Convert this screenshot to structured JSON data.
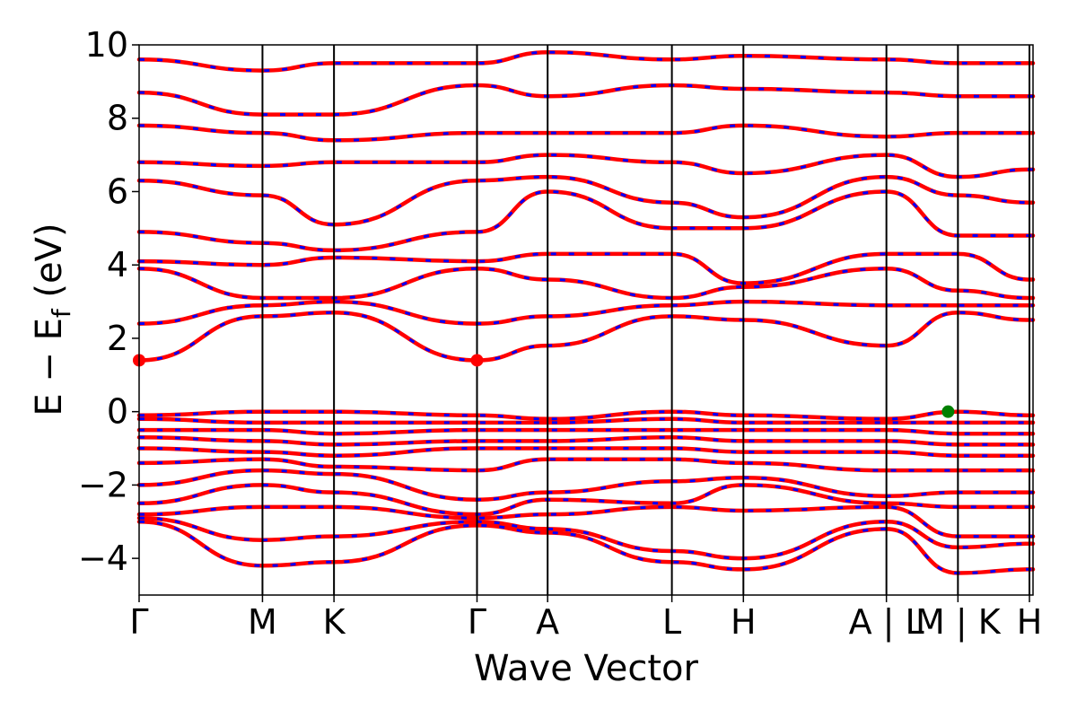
{
  "chart_data": {
    "type": "line",
    "title": "",
    "xlabel": "Wave Vector",
    "ylabel": "E − E_f (eV)",
    "ylabel_parts": {
      "main": "E − E",
      "sub": "f",
      "unit": " (eV)"
    },
    "ylim": [
      -5,
      10
    ],
    "yticks": [
      -4,
      -2,
      0,
      2,
      4,
      6,
      8,
      10
    ],
    "ytick_labels": [
      "−4",
      "−2",
      "0",
      "2",
      "4",
      "6",
      "8",
      "10"
    ],
    "xlim": [
      0,
      1
    ],
    "kpoints": [
      {
        "x": 0.0,
        "label": "Γ"
      },
      {
        "x": 0.138,
        "label": "M"
      },
      {
        "x": 0.218,
        "label": "K"
      },
      {
        "x": 0.378,
        "label": "Γ"
      },
      {
        "x": 0.457,
        "label": "A"
      },
      {
        "x": 0.596,
        "label": "L"
      },
      {
        "x": 0.676,
        "label": "H"
      },
      {
        "x": 0.836,
        "label": "A | L"
      },
      {
        "x": 0.916,
        "label": "M | K"
      },
      {
        "x": 0.996,
        "label": "H"
      }
    ],
    "grid": false,
    "legend": "none",
    "colors": {
      "spin_up": "#ff0000",
      "spin_down": "#0000ff",
      "cbm_marker": "#ff0000",
      "vbm_marker": "#008000"
    },
    "series": [
      {
        "values": [
          -3.0,
          -4.2,
          -4.1,
          -3.1,
          -3.3,
          -4.1,
          -4.3,
          -3.2,
          -4.4,
          -4.3,
          -4.3
        ]
      },
      {
        "values": [
          -2.9,
          -3.5,
          -3.4,
          -3.0,
          -3.2,
          -3.8,
          -4.0,
          -3.0,
          -3.7,
          -3.6,
          -3.6
        ]
      },
      {
        "values": [
          -2.8,
          -2.6,
          -2.6,
          -2.9,
          -2.8,
          -2.6,
          -2.7,
          -2.6,
          -3.4,
          -3.4,
          -3.4
        ]
      },
      {
        "values": [
          -2.5,
          -2.0,
          -2.2,
          -2.8,
          -2.4,
          -2.5,
          -2.0,
          -2.5,
          -2.6,
          -2.6,
          -2.6
        ]
      },
      {
        "values": [
          -2.0,
          -1.6,
          -1.7,
          -2.4,
          -2.2,
          -1.9,
          -1.8,
          -2.3,
          -2.2,
          -2.2,
          -2.2
        ]
      },
      {
        "values": [
          -1.4,
          -1.3,
          -1.5,
          -1.6,
          -1.3,
          -1.3,
          -1.4,
          -1.6,
          -1.6,
          -1.6,
          -1.6
        ]
      },
      {
        "values": [
          -1.0,
          -1.1,
          -1.2,
          -1.0,
          -1.0,
          -1.0,
          -1.1,
          -1.1,
          -1.2,
          -1.2,
          -1.2
        ]
      },
      {
        "values": [
          -0.7,
          -0.8,
          -0.9,
          -0.8,
          -0.8,
          -0.7,
          -0.8,
          -0.8,
          -0.9,
          -0.9,
          -0.9
        ]
      },
      {
        "values": [
          -0.5,
          -0.5,
          -0.6,
          -0.5,
          -0.5,
          -0.5,
          -0.5,
          -0.5,
          -0.6,
          -0.6,
          -0.6
        ]
      },
      {
        "values": [
          -0.2,
          -0.3,
          -0.3,
          -0.3,
          -0.3,
          -0.2,
          -0.3,
          -0.3,
          -0.3,
          -0.3,
          -0.3
        ]
      },
      {
        "values": [
          -0.1,
          0.0,
          0.0,
          -0.1,
          -0.2,
          0.0,
          -0.1,
          -0.2,
          0.0,
          -0.1,
          -0.1
        ]
      },
      {
        "values": [
          1.4,
          2.6,
          2.7,
          1.4,
          1.8,
          2.6,
          2.5,
          1.8,
          2.7,
          2.5,
          2.5
        ]
      },
      {
        "values": [
          2.4,
          2.9,
          3.0,
          2.4,
          2.6,
          2.9,
          3.0,
          2.9,
          2.9,
          2.9,
          2.9
        ]
      },
      {
        "values": [
          3.9,
          3.1,
          3.1,
          3.9,
          3.6,
          3.1,
          3.4,
          3.9,
          3.3,
          3.1,
          3.1
        ]
      },
      {
        "values": [
          4.1,
          4.0,
          4.2,
          4.1,
          4.3,
          4.3,
          3.5,
          4.3,
          4.3,
          3.6,
          3.6
        ]
      },
      {
        "values": [
          4.9,
          4.6,
          4.4,
          4.9,
          6.0,
          5.0,
          5.0,
          6.0,
          4.8,
          4.8,
          4.8
        ]
      },
      {
        "values": [
          6.3,
          5.9,
          5.1,
          6.3,
          6.4,
          5.7,
          5.3,
          6.4,
          5.9,
          5.7,
          5.7
        ]
      },
      {
        "values": [
          6.8,
          6.7,
          6.8,
          6.8,
          7.0,
          6.8,
          6.5,
          7.0,
          6.4,
          6.6,
          6.6
        ]
      },
      {
        "values": [
          7.8,
          7.6,
          7.4,
          7.6,
          7.6,
          7.6,
          7.8,
          7.5,
          7.6,
          7.6,
          7.6
        ]
      },
      {
        "values": [
          8.7,
          8.1,
          8.1,
          8.9,
          8.6,
          8.9,
          8.8,
          8.7,
          8.6,
          8.6,
          8.6
        ]
      },
      {
        "values": [
          9.6,
          9.3,
          9.5,
          9.5,
          9.8,
          9.6,
          9.7,
          9.6,
          9.5,
          9.5,
          9.5
        ]
      }
    ],
    "markers": [
      {
        "x": 0.0,
        "y": 1.4,
        "color": "#ff0000",
        "kind": "cbm"
      },
      {
        "x": 0.378,
        "y": 1.4,
        "color": "#ff0000",
        "kind": "cbm"
      },
      {
        "x": 0.905,
        "y": 0.0,
        "color": "#008000",
        "kind": "vbm"
      }
    ]
  }
}
